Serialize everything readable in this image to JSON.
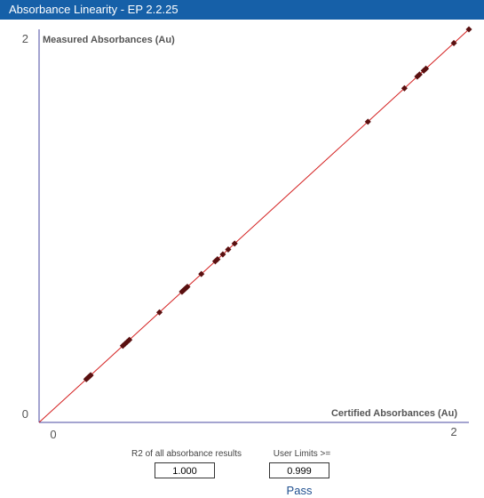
{
  "window": {
    "title": "Absorbance Linearity - EP 2.2.25"
  },
  "chart_data": {
    "type": "scatter",
    "xlabel": "Certified Absorbances (Au)",
    "ylabel": "Measured Absorbances (Au)",
    "xlim": [
      0,
      2
    ],
    "ylim": [
      0,
      2
    ],
    "x_ticks": [
      "0",
      "2"
    ],
    "y_ticks": [
      "0",
      "2"
    ],
    "fit_line": {
      "from": [
        0,
        0
      ],
      "to": [
        2,
        2
      ],
      "color": "#d42020"
    },
    "point_color": "#5a1010",
    "points": [
      [
        0.22,
        0.22
      ],
      [
        0.225,
        0.225
      ],
      [
        0.23,
        0.23
      ],
      [
        0.235,
        0.235
      ],
      [
        0.24,
        0.24
      ],
      [
        0.39,
        0.39
      ],
      [
        0.4,
        0.4
      ],
      [
        0.41,
        0.41
      ],
      [
        0.42,
        0.42
      ],
      [
        0.56,
        0.56
      ],
      [
        0.665,
        0.665
      ],
      [
        0.67,
        0.67
      ],
      [
        0.675,
        0.675
      ],
      [
        0.68,
        0.68
      ],
      [
        0.685,
        0.685
      ],
      [
        0.69,
        0.69
      ],
      [
        0.755,
        0.755
      ],
      [
        0.82,
        0.82
      ],
      [
        0.83,
        0.83
      ],
      [
        0.855,
        0.855
      ],
      [
        0.88,
        0.88
      ],
      [
        0.91,
        0.91
      ],
      [
        1.53,
        1.53
      ],
      [
        1.7,
        1.7
      ],
      [
        1.76,
        1.76
      ],
      [
        1.77,
        1.77
      ],
      [
        1.79,
        1.79
      ],
      [
        1.8,
        1.8
      ],
      [
        1.93,
        1.93
      ],
      [
        2.0,
        2.0
      ]
    ]
  },
  "stats": {
    "r2_label": "R2 of all absorbance results",
    "r2_value": "1.000",
    "limit_label": "User Limits >=",
    "limit_value": "0.999",
    "result": "Pass"
  }
}
